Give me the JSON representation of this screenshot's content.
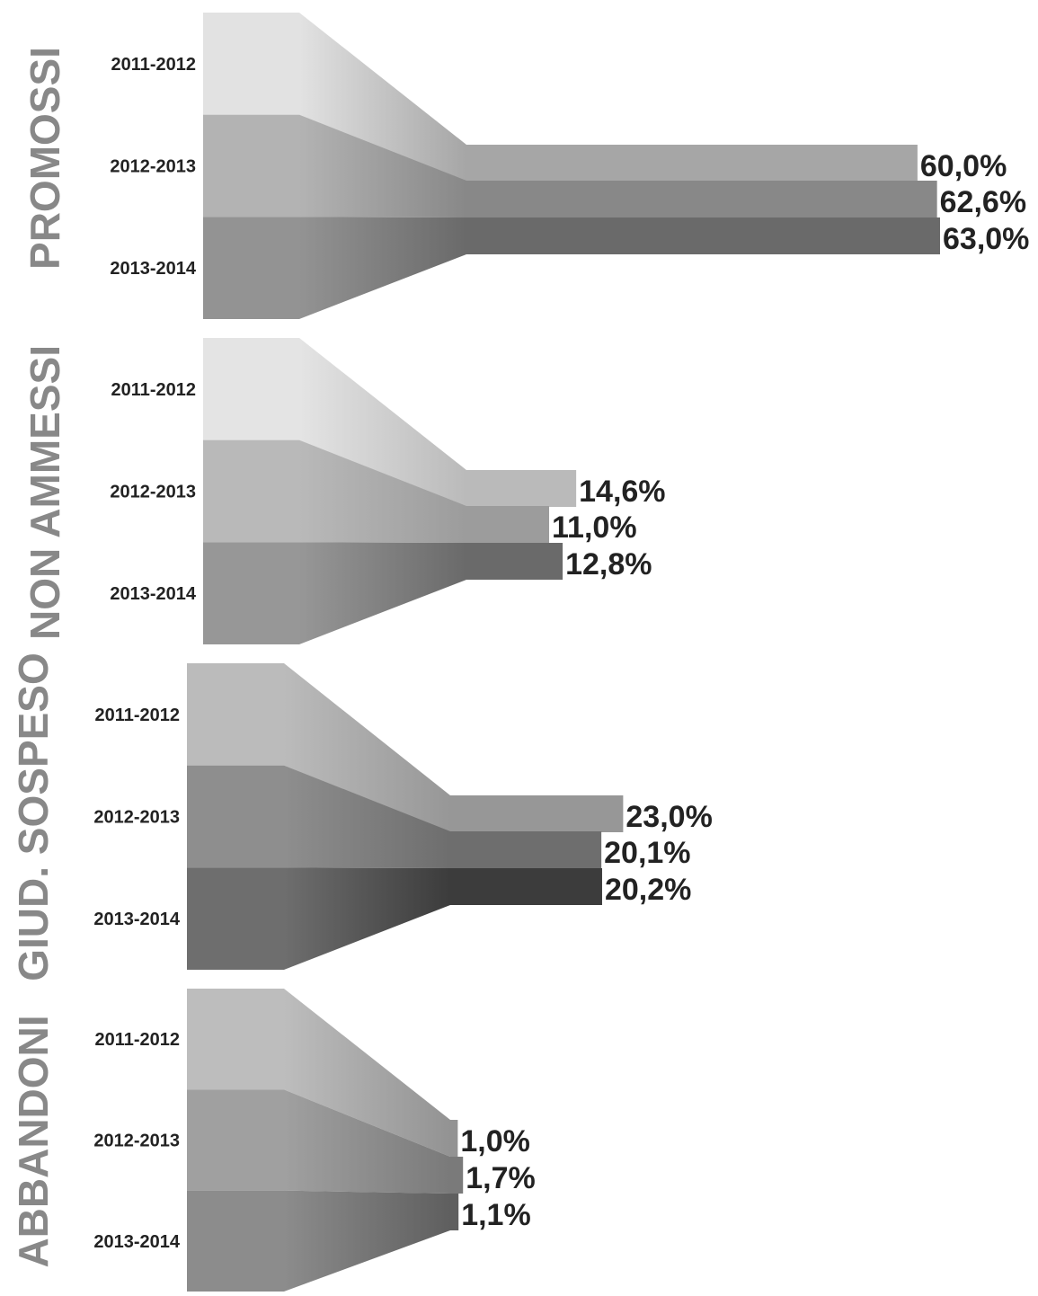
{
  "chart_data": {
    "type": "bar",
    "orientation": "horizontal",
    "categories": [
      "2011-2012",
      "2012-2013",
      "2013-2014"
    ],
    "groups": [
      {
        "name": "PROMOSSI",
        "values": [
          60.0,
          62.6,
          63.0
        ],
        "labels": [
          "60,0%",
          "62,6%",
          "63,0%"
        ]
      },
      {
        "name": "NON AMMESSI",
        "values": [
          14.6,
          11.0,
          12.8
        ],
        "labels": [
          "14,6%",
          "11,0%",
          "12,8%"
        ]
      },
      {
        "name": "GIUD. SOSPESO",
        "values": [
          23.0,
          20.1,
          20.2
        ],
        "labels": [
          "23,0%",
          "20,1%",
          "20,2%"
        ]
      },
      {
        "name": "ABBANDONI",
        "values": [
          1.0,
          1.7,
          1.1
        ],
        "labels": [
          "1,0%",
          "1,7%",
          "1,1%"
        ]
      }
    ],
    "xlim": [
      0,
      70
    ],
    "grid": false,
    "legend": "none"
  },
  "colors": {
    "title": "#888888",
    "text": "#222222",
    "groups": [
      {
        "blocks": [
          "#e2e2e2",
          "#b3b3b3",
          "#939393"
        ],
        "bars": [
          "#a6a6a6",
          "#888888",
          "#6a6a6a"
        ]
      },
      {
        "blocks": [
          "#e4e4e4",
          "#b9b9b9",
          "#979797"
        ],
        "bars": [
          "#bababa",
          "#9c9c9c",
          "#6a6a6a"
        ]
      },
      {
        "blocks": [
          "#bbbbbb",
          "#8e8e8e",
          "#6e6e6e"
        ],
        "bars": [
          "#979797",
          "#6e6e6e",
          "#3c3c3c"
        ]
      },
      {
        "blocks": [
          "#bdbdbd",
          "#a0a0a0",
          "#8c8c8c"
        ],
        "bars": [
          "#939393",
          "#7a7a7a",
          "#5f5f5f"
        ]
      }
    ]
  }
}
